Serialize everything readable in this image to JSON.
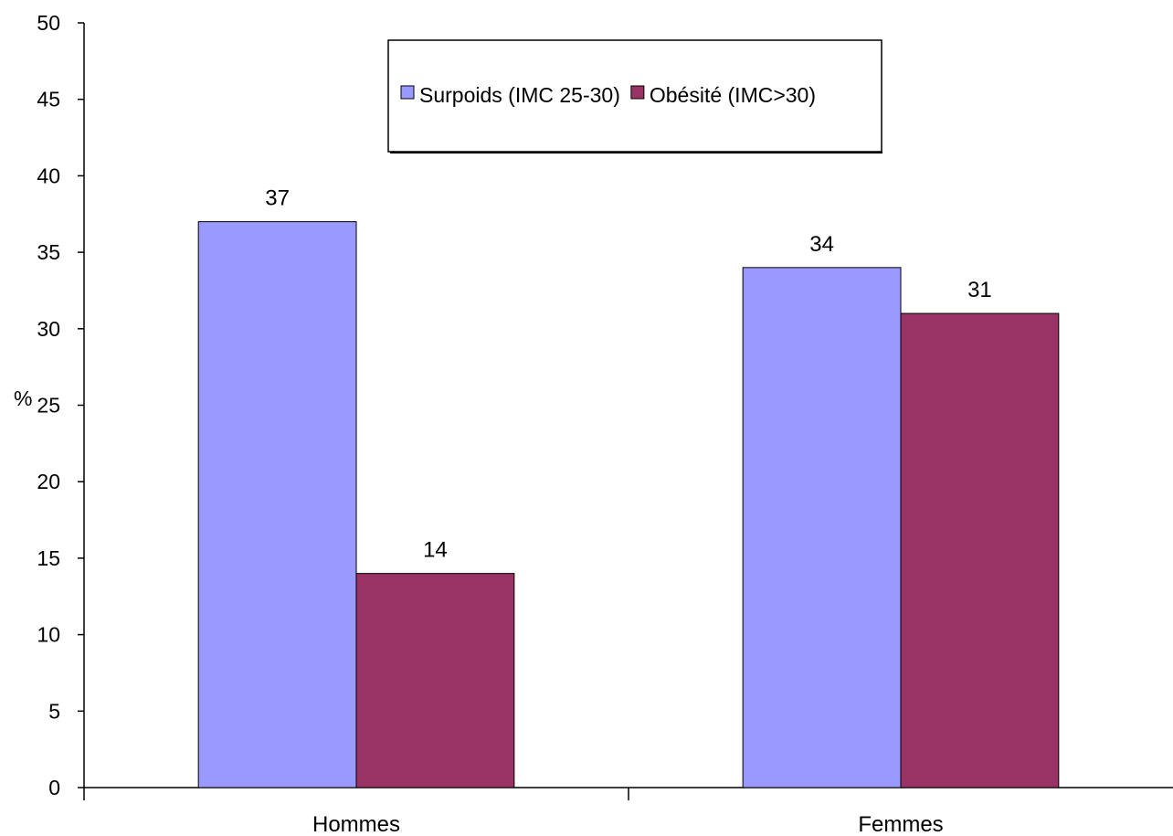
{
  "chart_data": {
    "type": "bar",
    "categories": [
      "Hommes",
      "Femmes"
    ],
    "series": [
      {
        "name": "Surpoids (IMC 25-30)",
        "values": [
          37,
          34
        ],
        "color": "#9999ff"
      },
      {
        "name": "Obésité (IMC>30)",
        "values": [
          14,
          31
        ],
        "color": "#993366"
      }
    ],
    "title": "",
    "xlabel": "",
    "ylabel": "%",
    "ylim": [
      0,
      50
    ],
    "yticks": [
      0,
      5,
      10,
      15,
      20,
      25,
      30,
      35,
      40,
      45,
      50
    ],
    "grid": false,
    "legend_position": "top-center",
    "data_labels": true
  }
}
